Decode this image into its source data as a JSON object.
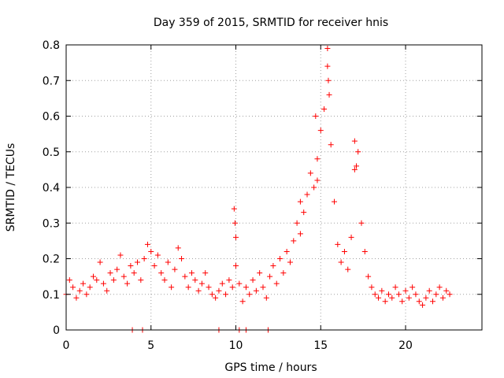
{
  "chart_data": {
    "type": "scatter",
    "title": "Day 359 of 2015, SRMTID for receiver hnis",
    "xlabel": "GPS time / hours",
    "ylabel": "SRMTID / TECUs",
    "xlim": [
      0,
      24.5
    ],
    "ylim": [
      0,
      0.8
    ],
    "xticks": [
      0,
      5,
      10,
      15,
      20
    ],
    "xtick_labels": [
      "0",
      "5",
      "10",
      "15",
      "20"
    ],
    "yticks": [
      0,
      0.1,
      0.2,
      0.3,
      0.4,
      0.5,
      0.6,
      0.7,
      0.8
    ],
    "ytick_labels": [
      "0",
      "0.1",
      "0.2",
      "0.3",
      "0.4",
      "0.5",
      "0.6",
      "0.7",
      "0.8"
    ],
    "grid": true,
    "marker": "plus",
    "color": "#ff0000",
    "series": [
      {
        "name": "SRMTID",
        "x": [
          0.0,
          0.2,
          0.4,
          0.6,
          0.8,
          1.0,
          1.2,
          1.4,
          1.6,
          1.8,
          2.0,
          2.2,
          2.4,
          2.6,
          2.8,
          3.0,
          3.2,
          3.4,
          3.6,
          3.8,
          4.0,
          4.2,
          4.4,
          4.6,
          4.8,
          5.0,
          5.2,
          5.4,
          5.6,
          5.8,
          6.0,
          6.2,
          6.4,
          6.6,
          6.8,
          7.0,
          7.2,
          7.4,
          7.6,
          7.8,
          8.0,
          8.2,
          8.4,
          8.6,
          8.8,
          9.0,
          9.2,
          9.4,
          9.6,
          9.8,
          10.0,
          10.2,
          10.4,
          10.6,
          10.8,
          11.0,
          11.2,
          11.4,
          11.6,
          11.8,
          12.0,
          12.2,
          12.4,
          12.6,
          12.8,
          13.0,
          13.2,
          13.4,
          13.6,
          13.8,
          14.0,
          14.2,
          14.4,
          14.6,
          14.8,
          15.0,
          15.2,
          15.4,
          15.6,
          15.8,
          16.0,
          16.2,
          16.4,
          16.6,
          16.8,
          17.0,
          17.2,
          17.4,
          17.6,
          17.8,
          18.0,
          18.2,
          18.4,
          18.6,
          18.8,
          19.0,
          19.2,
          19.4,
          19.6,
          19.8,
          20.0,
          20.2,
          20.4,
          20.6,
          20.8,
          21.0,
          21.2,
          21.4,
          21.6,
          21.8,
          22.0,
          22.2,
          22.4,
          22.6,
          9.9,
          9.95,
          10.0,
          3.9,
          4.5,
          9.0,
          10.2,
          10.6,
          11.9,
          15.4,
          15.45,
          15.5,
          17.0,
          17.1,
          14.7,
          14.8,
          13.8
        ],
        "y": [
          0.1,
          0.14,
          0.12,
          0.09,
          0.11,
          0.13,
          0.1,
          0.12,
          0.15,
          0.14,
          0.19,
          0.13,
          0.11,
          0.16,
          0.14,
          0.17,
          0.21,
          0.15,
          0.13,
          0.18,
          0.16,
          0.19,
          0.14,
          0.2,
          0.24,
          0.22,
          0.18,
          0.21,
          0.16,
          0.14,
          0.19,
          0.12,
          0.17,
          0.23,
          0.2,
          0.15,
          0.12,
          0.16,
          0.14,
          0.11,
          0.13,
          0.16,
          0.12,
          0.1,
          0.09,
          0.11,
          0.13,
          0.1,
          0.14,
          0.12,
          0.18,
          0.13,
          0.08,
          0.12,
          0.1,
          0.14,
          0.11,
          0.16,
          0.12,
          0.09,
          0.15,
          0.18,
          0.13,
          0.2,
          0.16,
          0.22,
          0.19,
          0.25,
          0.3,
          0.27,
          0.33,
          0.38,
          0.44,
          0.4,
          0.48,
          0.56,
          0.62,
          0.74,
          0.52,
          0.36,
          0.24,
          0.19,
          0.22,
          0.17,
          0.26,
          0.45,
          0.5,
          0.3,
          0.22,
          0.15,
          0.12,
          0.1,
          0.09,
          0.11,
          0.08,
          0.1,
          0.09,
          0.12,
          0.1,
          0.08,
          0.11,
          0.09,
          0.12,
          0.1,
          0.08,
          0.07,
          0.09,
          0.11,
          0.08,
          0.1,
          0.12,
          0.09,
          0.11,
          0.1,
          0.34,
          0.3,
          0.26,
          0.0,
          0.0,
          0.0,
          0.0,
          0.0,
          0.0,
          0.79,
          0.7,
          0.66,
          0.53,
          0.46,
          0.6,
          0.42,
          0.36
        ]
      }
    ]
  }
}
